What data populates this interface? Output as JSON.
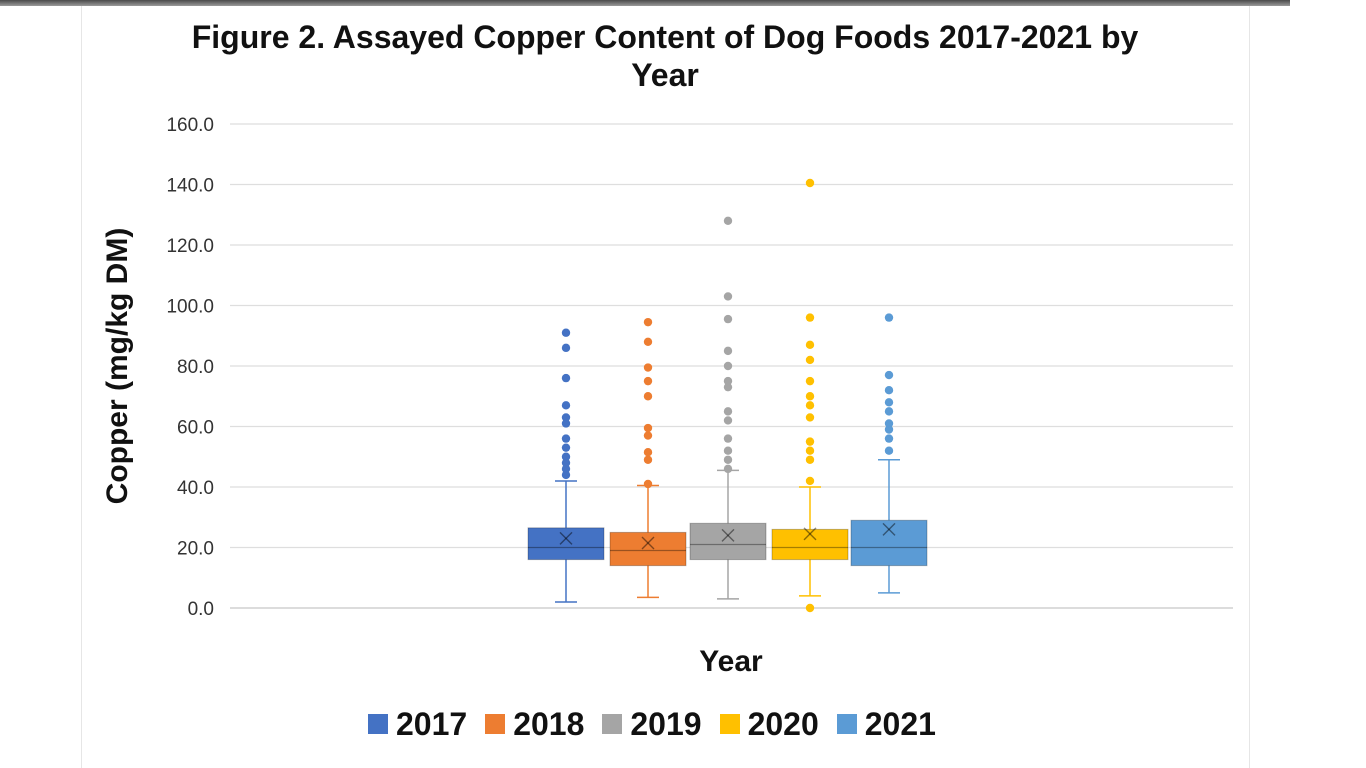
{
  "title": {
    "line1": "Figure 2.  Assayed Copper Content of Dog Foods 2017-2021 by",
    "line2": "Year"
  },
  "chart_data": {
    "type": "box",
    "title": "Figure 2.  Assayed Copper Content of Dog Foods 2017-2021 by Year",
    "xlabel": "Year",
    "ylabel": "Copper (mg/kg DM)",
    "ylim": [
      0,
      160
    ],
    "yticks": [
      "0.0",
      "20.0",
      "40.0",
      "60.0",
      "80.0",
      "100.0",
      "120.0",
      "140.0",
      "160.0"
    ],
    "grid": true,
    "legend_position": "bottom",
    "series": [
      {
        "name": "2017",
        "color": "#4472C4",
        "min": 2,
        "q1": 16,
        "median": 20,
        "q3": 26.5,
        "max": 42,
        "mean": 23,
        "outliers": [
          44,
          46,
          48,
          50,
          53,
          56,
          61,
          63,
          67,
          76,
          86,
          91
        ]
      },
      {
        "name": "2018",
        "color": "#ED7D31",
        "min": 3.5,
        "q1": 14,
        "median": 19,
        "q3": 25,
        "max": 40.5,
        "mean": 21.5,
        "outliers": [
          41,
          49,
          51.5,
          57,
          59.5,
          70,
          75,
          79.5,
          88,
          94.5
        ]
      },
      {
        "name": "2019",
        "color": "#A5A5A5",
        "min": 3,
        "q1": 16,
        "median": 21,
        "q3": 28,
        "max": 45.5,
        "mean": 24,
        "outliers": [
          46,
          49,
          52,
          56,
          62,
          65,
          73,
          75,
          80,
          85,
          95.5,
          103,
          128
        ]
      },
      {
        "name": "2020",
        "color": "#FFC000",
        "min": 4,
        "q1": 16,
        "median": 20,
        "q3": 26,
        "max": 40,
        "mean": 24.5,
        "outliers": [
          0,
          42,
          49,
          52,
          55,
          63,
          67,
          70,
          75,
          82,
          87,
          96,
          140.5
        ]
      },
      {
        "name": "2021",
        "color": "#5B9BD5",
        "min": 5,
        "q1": 14,
        "median": 20,
        "q3": 29,
        "max": 49,
        "mean": 26,
        "outliers": [
          52,
          56,
          59,
          61,
          65,
          68,
          72,
          77,
          96
        ]
      }
    ]
  }
}
